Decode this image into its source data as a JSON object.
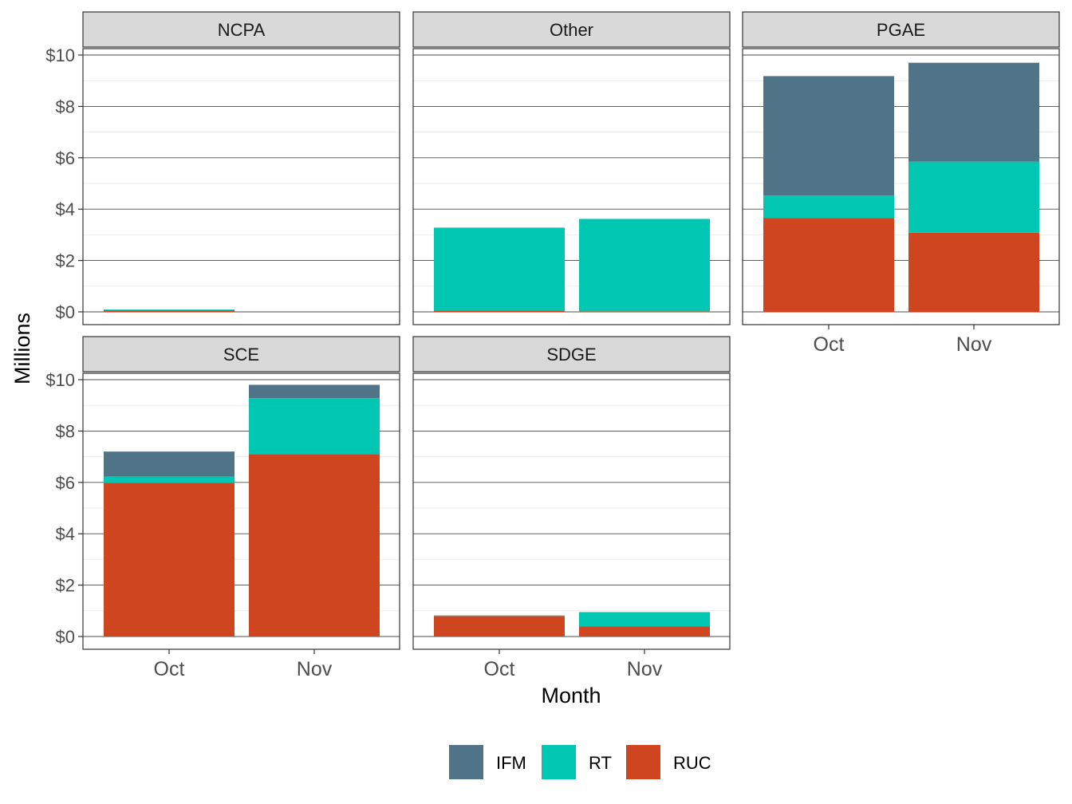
{
  "chart_data": {
    "type": "bar",
    "stacked": true,
    "facet": "panels",
    "xlabel": "Month",
    "ylabel": "Millions",
    "ylim": [
      0,
      10.6
    ],
    "y_ticks": [
      0,
      2,
      4,
      6,
      8,
      10
    ],
    "y_tick_labels": [
      "$0",
      "$2",
      "$4",
      "$6",
      "$8",
      "$10"
    ],
    "categories": [
      "Oct",
      "Nov"
    ],
    "grid": true,
    "legend_position": "bottom",
    "series_order": [
      "RUC",
      "RT",
      "IFM"
    ],
    "colors": {
      "IFM": "#4f7488",
      "RT": "#00c6b2",
      "RUC": "#cf4520"
    },
    "panels": [
      {
        "name": "NCPA",
        "values": {
          "RUC": [
            0.06,
            0
          ],
          "RT": [
            0.03,
            0
          ],
          "IFM": [
            0,
            0
          ]
        }
      },
      {
        "name": "Other",
        "values": {
          "RUC": [
            0.05,
            0.02
          ],
          "RT": [
            3.23,
            3.6
          ],
          "IFM": [
            0,
            0
          ]
        }
      },
      {
        "name": "PGAE",
        "values": {
          "RUC": [
            3.65,
            3.08
          ],
          "RT": [
            0.88,
            2.77
          ],
          "IFM": [
            4.65,
            3.85
          ]
        }
      },
      {
        "name": "SCE",
        "values": {
          "RUC": [
            5.98,
            7.1
          ],
          "RT": [
            0.25,
            2.18
          ],
          "IFM": [
            0.97,
            0.52
          ]
        }
      },
      {
        "name": "SDGE",
        "values": {
          "RUC": [
            0.8,
            0.4
          ],
          "RT": [
            0.02,
            0.55
          ],
          "IFM": [
            0,
            0
          ]
        }
      }
    ]
  },
  "legend": {
    "items": [
      {
        "label": "IFM",
        "color": "#4f7488"
      },
      {
        "label": "RT",
        "color": "#00c6b2"
      },
      {
        "label": "RUC",
        "color": "#cf4520"
      }
    ]
  }
}
